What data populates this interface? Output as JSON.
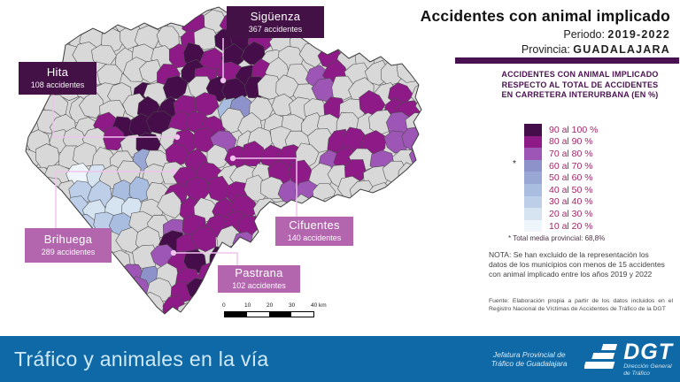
{
  "title": "Accidentes con animal implicado",
  "period_label": "Periodo: ",
  "period_value": "2019-2022",
  "province_label": "Provincia: ",
  "province_value": "GUADALAJARA",
  "legend": {
    "heading": "ACCIDENTES CON ANIMAL IMPLICADO RESPECTO AL TOTAL DE ACCIDENTES EN CARRETERA INTERURBANA (EN %)",
    "items": [
      {
        "label": "90 al 100 %",
        "color_key": "c90"
      },
      {
        "label": "80 al 90 %",
        "color_key": "c80"
      },
      {
        "label": "70 al 80 %",
        "color_key": "c70"
      },
      {
        "label": "60 al 70 %",
        "color_key": "c60"
      },
      {
        "label": "50 al 60 %",
        "color_key": "c50"
      },
      {
        "label": "40 al 50 %",
        "color_key": "c40"
      },
      {
        "label": "30 al 40 %",
        "color_key": "c30"
      },
      {
        "label": "20 al 30 %",
        "color_key": "c20"
      },
      {
        "label": "10 al 20 %",
        "color_key": "c10"
      }
    ],
    "mean_marker": "*",
    "footnote": "* Total media provincial: 68,8%",
    "note": "NOTA: Se han excluido de la representación los datos de los municipios con menos de 15 accidentes con animal implicado entre los años 2019 y 2022",
    "source": "Fuente: Elaboración propia a partir de los datos incluidos en el Registro Nacional de Víctimas de Accidentes de Tráfico de la DGT"
  },
  "callouts": [
    {
      "name": "Sigüenza",
      "accidents": "367 accidentes"
    },
    {
      "name": "Hita",
      "accidents": "108 accidentes"
    },
    {
      "name": "Brihuega",
      "accidents": "289 accidentes"
    },
    {
      "name": "Cifuentes",
      "accidents": "140 accidentes"
    },
    {
      "name": "Pastrana",
      "accidents": "102 accidentes"
    }
  ],
  "scalebar": {
    "ticks": [
      "0",
      "10",
      "20",
      "30",
      "40 km"
    ]
  },
  "footer": {
    "headline": "Tráfico y animales en la vía",
    "org": [
      "Jefatura Provincial de",
      "Tráfico de Guadalajara"
    ],
    "logo_word": "DGT",
    "logo_sub": [
      "Dirección General",
      "de Tráfico"
    ]
  },
  "colors": {
    "c90": "#450d49",
    "c80": "#8e1a88",
    "c70": "#9d56b5",
    "c60": "#8e92cb",
    "c50": "#98a7d4",
    "c40": "#a9bde0",
    "c30": "#bccee8",
    "c20": "#d6e3f1",
    "c10": "#eff6fb",
    "excluded": "#d8d8d8",
    "accent_dark_purple": "#4a1150",
    "legend_label": "#a12768",
    "leader_pink": "#efc3ee",
    "callout_dark": "#431146",
    "callout_light": "#b366ae",
    "footer_blue": "#0e69a6"
  }
}
